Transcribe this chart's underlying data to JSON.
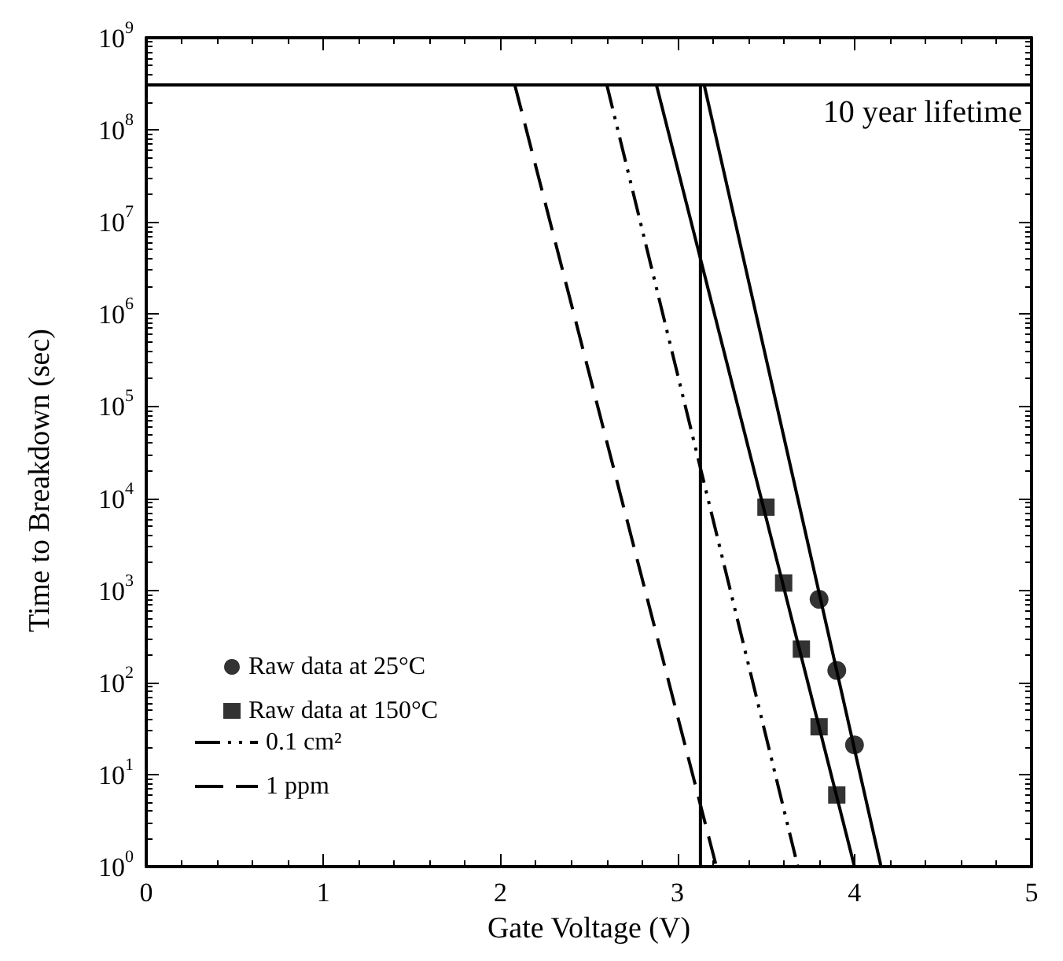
{
  "chart_data": {
    "type": "scatter",
    "xlabel": "Gate Voltage (V)",
    "ylabel": "Time to Breakdown (sec)",
    "log": "y",
    "xlim": [
      0,
      5
    ],
    "xticks": [
      0,
      1,
      2,
      3,
      4,
      5
    ],
    "ylim": [
      1,
      1000000000
    ],
    "yticks": [
      {
        "value": 1,
        "label": "10$^{0}$"
      },
      {
        "value": 10,
        "label": "10$^{1}$"
      },
      {
        "value": 100,
        "label": "10$^{2}$"
      },
      {
        "value": 1000,
        "label": "10$^{3}$"
      },
      {
        "value": 10000,
        "label": "10$^{4}$"
      },
      {
        "value": 100000,
        "label": "10$^{5}$"
      },
      {
        "value": 1000000,
        "label": "10$^{6}$"
      },
      {
        "value": 10000000,
        "label": "10$^{7}$"
      },
      {
        "value": 100000000,
        "label": "10$^{8}$"
      },
      {
        "value": 1000000000,
        "label": "10$^{9}$"
      }
    ],
    "grid": false,
    "legend": "bottom left",
    "series": [
      {
        "name": "Raw data at 25°C",
        "marker": "circle",
        "color": "#000000",
        "x": [
          3.8,
          3.9,
          4.0
        ],
        "values": [
          800,
          135,
          21
        ]
      },
      {
        "name": "Raw data at 150°C",
        "marker": "square",
        "color": "#000000",
        "x": [
          3.5,
          3.6,
          3.7,
          3.8,
          3.9
        ],
        "values": [
          8000,
          1200,
          230,
          33,
          6
        ]
      },
      {
        "name": "0.1 cm²",
        "type": "line",
        "line_style": "dotted",
        "color": "#000000",
        "x": [
          2.6,
          3.68
        ],
        "values": [
          315000000,
          1
        ]
      },
      {
        "name": "1 ppm",
        "type": "line",
        "line_style": "dashed",
        "color": "#000000",
        "x": [
          2.08,
          3.22
        ],
        "values": [
          315000000,
          1
        ]
      },
      {
        "type": "line",
        "line_style": "solid",
        "color": "#000000",
        "x": [
          3.15,
          4.15
        ],
        "values": [
          315000000,
          1
        ]
      },
      {
        "type": "line",
        "line_style": "solid",
        "color": "#000000",
        "x": [
          2.88,
          4.0
        ],
        "values": [
          315000000,
          1
        ]
      },
      {
        "type": "line",
        "line_style": "solid",
        "color": "#000000",
        "x": [
          3.13,
          3.13
        ],
        "values": [
          315000000,
          1
        ]
      }
    ],
    "ref_lines": [
      {
        "axis": "y",
        "value": 315000000,
        "label": "10 year lifetime",
        "color": "#000000"
      }
    ]
  }
}
